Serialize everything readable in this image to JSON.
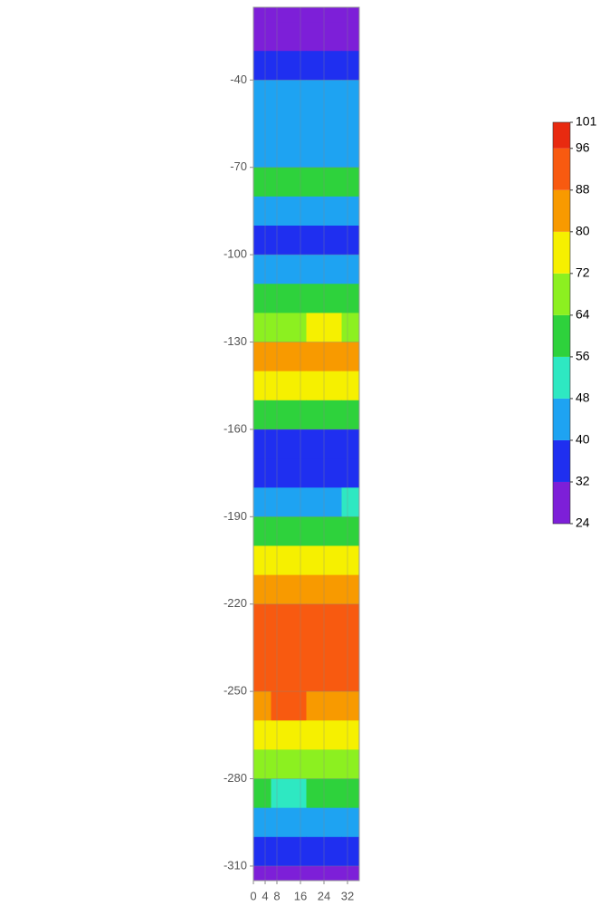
{
  "chart_data": {
    "type": "contour",
    "x": [
      0,
      12,
      24,
      36
    ],
    "y": [
      -15,
      -25,
      -35,
      -45,
      -55,
      -65,
      -75,
      -85,
      -95,
      -105,
      -115,
      -125,
      -135,
      -145,
      -155,
      -165,
      -175,
      -185,
      -195,
      -205,
      -215,
      -225,
      -235,
      -245,
      -255,
      -265,
      -275,
      -285,
      -295,
      -305,
      -315
    ],
    "z": [
      [
        30,
        29,
        30,
        29
      ],
      [
        31,
        30,
        30,
        31
      ],
      [
        36,
        35,
        36,
        37
      ],
      [
        44,
        45,
        44,
        43
      ],
      [
        45,
        44,
        45,
        44
      ],
      [
        42,
        41,
        40,
        40
      ],
      [
        57,
        58,
        57,
        58
      ],
      [
        47,
        46,
        47,
        46
      ],
      [
        36,
        34,
        35,
        37
      ],
      [
        43,
        42,
        44,
        45
      ],
      [
        60,
        61,
        59,
        62
      ],
      [
        70,
        71,
        72,
        71
      ],
      [
        84,
        82,
        85,
        83
      ],
      [
        77,
        76,
        78,
        75
      ],
      [
        58,
        57,
        56,
        58
      ],
      [
        38,
        37,
        37,
        39
      ],
      [
        38,
        37,
        36,
        38
      ],
      [
        46,
        47,
        46,
        48
      ],
      [
        60,
        59,
        60,
        62
      ],
      [
        74,
        75,
        73,
        74
      ],
      [
        84,
        83,
        84,
        82
      ],
      [
        92,
        91,
        90,
        92
      ],
      [
        94,
        93,
        95,
        93
      ],
      [
        92,
        93,
        92,
        91
      ],
      [
        86,
        88,
        85,
        86
      ],
      [
        76,
        78,
        77,
        75
      ],
      [
        66,
        65,
        67,
        66
      ],
      [
        56,
        55,
        57,
        56
      ],
      [
        46,
        45,
        44,
        47
      ],
      [
        36,
        34,
        38,
        37
      ],
      [
        30,
        29,
        30,
        31
      ]
    ],
    "xlim": [
      0,
      36
    ],
    "xticks": [
      0,
      4,
      8,
      16,
      24,
      32
    ],
    "ylim": [
      -315,
      -15
    ],
    "yticks": [
      -40,
      -70,
      -100,
      -130,
      -160,
      -190,
      -220,
      -250,
      -280,
      -310
    ],
    "grid": true,
    "colorbar": {
      "levels": [
        24,
        32,
        40,
        48,
        56,
        64,
        72,
        80,
        88,
        96,
        101
      ],
      "colors": [
        "#7d1fd8",
        "#1f2ff0",
        "#1ea3f2",
        "#2ee8c2",
        "#2ed23c",
        "#8cf020",
        "#f6f000",
        "#f89a00",
        "#f85a10",
        "#e82a10"
      ]
    }
  }
}
